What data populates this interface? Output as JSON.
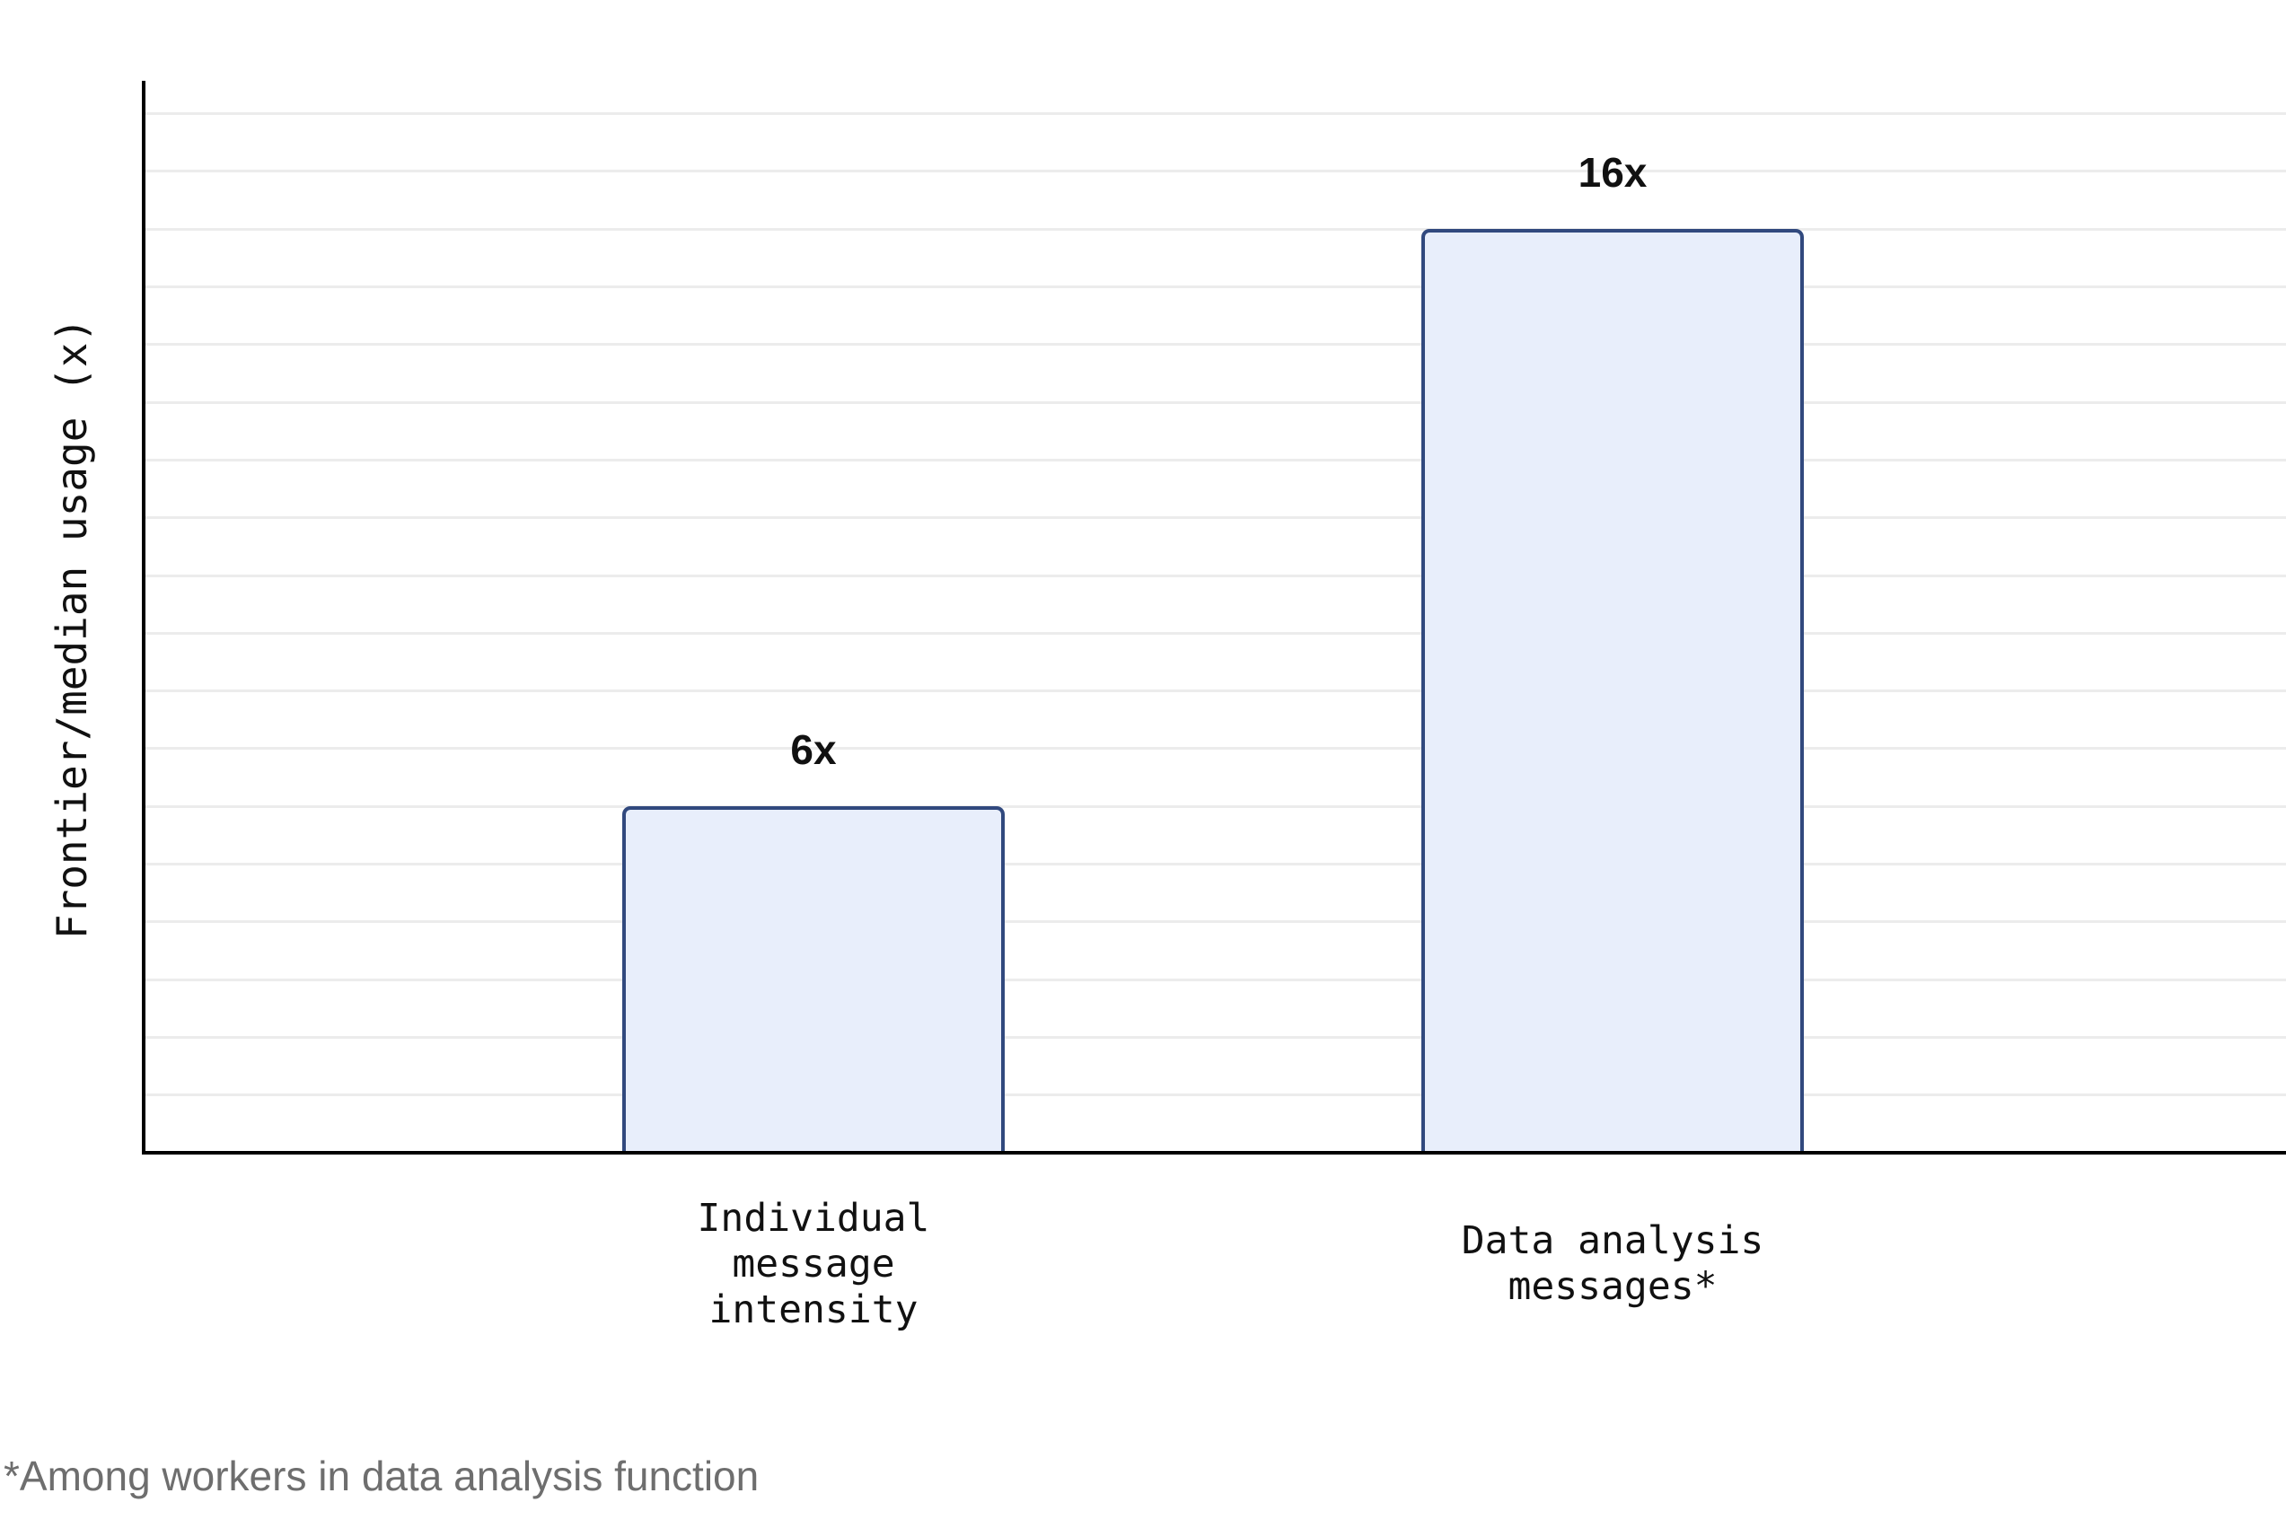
{
  "chart_data": {
    "type": "bar",
    "categories": [
      "Individual\nmessage\nintensity",
      "Data analysis\nmessages*"
    ],
    "values": [
      6,
      16
    ],
    "bar_labels": [
      "6x",
      "16x"
    ],
    "title": "",
    "xlabel": "",
    "ylabel": "Frontier/median usage (x)",
    "ylim": [
      0,
      18.5
    ],
    "grid": "horizontal gridlines every 1x, y tick labels hidden",
    "legend_position": "none",
    "annotations": [
      "6x above first bar",
      "16x above second bar"
    ]
  },
  "footnote": "*Among workers in data analysis function",
  "colors": {
    "bar_fill": "#e8eefb",
    "bar_border": "#31497e",
    "grid": "#ececec",
    "axis": "#000000",
    "footnote": "#6e6e6e",
    "text": "#111111"
  }
}
